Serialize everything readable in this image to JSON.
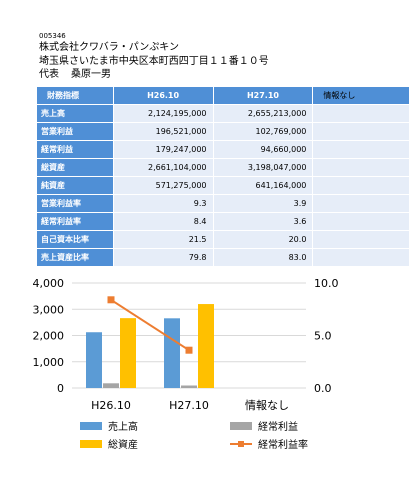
{
  "header": {
    "code": "005346",
    "company": "株式会社クワバラ・パンぷキン",
    "address": "埼玉県さいたま市中央区本町西四丁目１１番１０号",
    "rep_label": "代表",
    "rep_name": "桑原一男"
  },
  "table": {
    "headers": [
      "財務指標",
      "H26.10",
      "H27.10",
      "情報なし"
    ],
    "rows": [
      {
        "label": "売上高",
        "values": [
          "2,124,195,000",
          "2,655,213,000",
          ""
        ]
      },
      {
        "label": "営業利益",
        "values": [
          "196,521,000",
          "102,769,000",
          ""
        ]
      },
      {
        "label": "経常利益",
        "values": [
          "179,247,000",
          "94,660,000",
          ""
        ]
      },
      {
        "label": "総資産",
        "values": [
          "2,661,104,000",
          "3,198,047,000",
          ""
        ]
      },
      {
        "label": "純資産",
        "values": [
          "571,275,000",
          "641,164,000",
          ""
        ]
      },
      {
        "label": "営業利益率",
        "values": [
          "9.3",
          "3.9",
          ""
        ]
      },
      {
        "label": "経常利益率",
        "values": [
          "8.4",
          "3.6",
          ""
        ]
      },
      {
        "label": "自己資本比率",
        "values": [
          "21.5",
          "20.0",
          ""
        ]
      },
      {
        "label": "売上資産比率",
        "values": [
          "79.8",
          "83.0",
          ""
        ]
      }
    ]
  },
  "chart_data": {
    "type": "bar",
    "categories": [
      "H26.10",
      "H27.10",
      "情報なし"
    ],
    "series": [
      {
        "name": "売上高",
        "kind": "bar",
        "axis": "left",
        "color": "#5b9bd5",
        "values": [
          2124,
          2655,
          null
        ]
      },
      {
        "name": "経常利益",
        "kind": "bar",
        "axis": "left",
        "color": "#a5a5a5",
        "values": [
          179,
          95,
          null
        ]
      },
      {
        "name": "総資産",
        "kind": "bar",
        "axis": "left",
        "color": "#ffc000",
        "values": [
          2661,
          3198,
          null
        ]
      },
      {
        "name": "経常利益率",
        "kind": "line",
        "axis": "right",
        "color": "#ed7d31",
        "values": [
          8.4,
          3.6,
          null
        ]
      }
    ],
    "y_left": {
      "min": 0,
      "max": 4000,
      "ticks": [
        "0",
        "1,000",
        "2,000",
        "3,000",
        "4,000"
      ]
    },
    "y_right": {
      "min": 0,
      "max": 10,
      "ticks": [
        "0.0",
        "5.0",
        "10.0"
      ]
    },
    "grid": true,
    "legend": "bottom"
  }
}
